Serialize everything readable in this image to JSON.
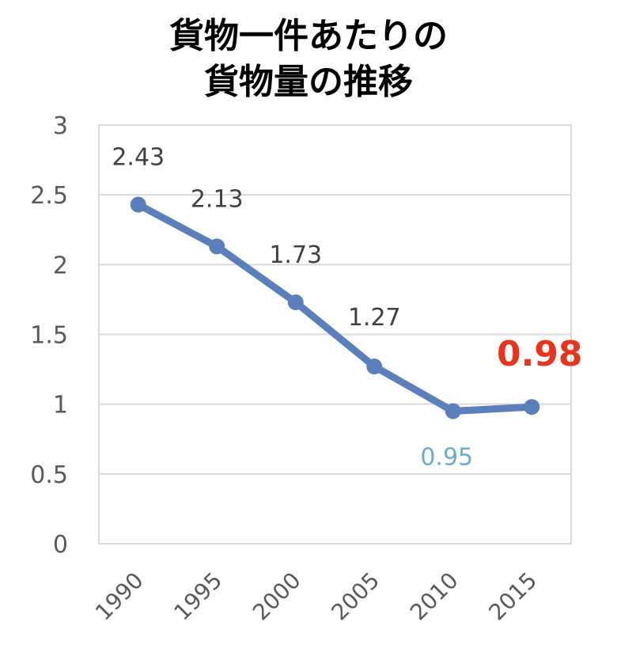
{
  "chart_data": {
    "type": "line",
    "title": "貨物一件あたりの貨物量の推移",
    "title_lines": [
      "貨物一件あたりの",
      "貨物量の推移"
    ],
    "categories": [
      "1990",
      "1995",
      "2000",
      "2005",
      "2010",
      "2015"
    ],
    "series": [
      {
        "name": "貨物一件あたりの貨物量",
        "values": [
          2.43,
          2.13,
          1.73,
          1.27,
          0.95,
          0.98
        ],
        "color": "#5b7fbb"
      }
    ],
    "data_labels": [
      "2.43",
      "2.13",
      "1.73",
      "1.27",
      "0.95",
      "0.98"
    ],
    "highlight_labels": {
      "2010": "#6aaec6",
      "2015": "#e8341c"
    },
    "yticks": [
      "0",
      "0.5",
      "1",
      "1.5",
      "2",
      "2.5",
      "3"
    ],
    "xlabel": "",
    "ylabel": "",
    "ylim": [
      0,
      3
    ],
    "grid": true,
    "legend": "none"
  }
}
